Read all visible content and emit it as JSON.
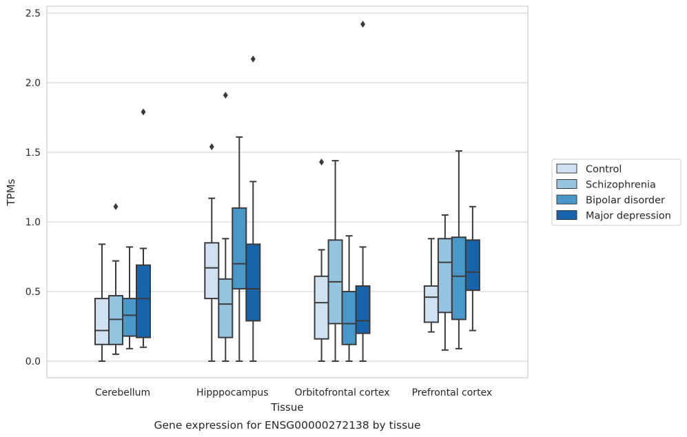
{
  "caption": "Gene expression for ENSG00000272138 by tissue",
  "chart_data": {
    "type": "box",
    "xlabel": "Tissue",
    "ylabel": "TPMs",
    "ylim": [
      -0.12,
      2.55
    ],
    "yticks": [
      0.0,
      0.5,
      1.0,
      1.5,
      2.0,
      2.5
    ],
    "ytick_labels": [
      "0.0",
      "0.5",
      "1.0",
      "1.5",
      "2.0",
      "2.5"
    ],
    "grid": "horizontal",
    "legend_position": "right",
    "categories": [
      "Cerebellum",
      "Hipppocampus",
      "Orbitofrontal cortex",
      "Prefrontal cortex"
    ],
    "series": [
      {
        "name": "Control",
        "color": "#d0e1f2",
        "boxes": [
          {
            "whislo": 0.0,
            "q1": 0.12,
            "med": 0.22,
            "q3": 0.45,
            "whishi": 0.84,
            "fliers": []
          },
          {
            "whislo": 0.0,
            "q1": 0.45,
            "med": 0.67,
            "q3": 0.85,
            "whishi": 1.17,
            "fliers": [
              1.54
            ]
          },
          {
            "whislo": 0.0,
            "q1": 0.16,
            "med": 0.42,
            "q3": 0.61,
            "whishi": 0.8,
            "fliers": [
              1.43
            ]
          },
          {
            "whislo": 0.21,
            "q1": 0.28,
            "med": 0.46,
            "q3": 0.54,
            "whishi": 0.88,
            "fliers": []
          }
        ]
      },
      {
        "name": "Schizophrenia",
        "color": "#94c4df",
        "boxes": [
          {
            "whislo": 0.05,
            "q1": 0.12,
            "med": 0.3,
            "q3": 0.47,
            "whishi": 0.72,
            "fliers": [
              1.11
            ]
          },
          {
            "whislo": 0.0,
            "q1": 0.17,
            "med": 0.41,
            "q3": 0.59,
            "whishi": 0.88,
            "fliers": [
              1.91
            ]
          },
          {
            "whislo": 0.0,
            "q1": 0.27,
            "med": 0.57,
            "q3": 0.87,
            "whishi": 1.44,
            "fliers": []
          },
          {
            "whislo": 0.08,
            "q1": 0.35,
            "med": 0.71,
            "q3": 0.88,
            "whishi": 1.05,
            "fliers": []
          }
        ]
      },
      {
        "name": "Bipolar disorder",
        "color": "#4a98c9",
        "boxes": [
          {
            "whislo": 0.09,
            "q1": 0.18,
            "med": 0.33,
            "q3": 0.45,
            "whishi": 0.82,
            "fliers": []
          },
          {
            "whislo": 0.0,
            "q1": 0.52,
            "med": 0.7,
            "q3": 1.1,
            "whishi": 1.61,
            "fliers": []
          },
          {
            "whislo": 0.0,
            "q1": 0.12,
            "med": 0.27,
            "q3": 0.5,
            "whishi": 0.9,
            "fliers": []
          },
          {
            "whislo": 0.09,
            "q1": 0.3,
            "med": 0.61,
            "q3": 0.89,
            "whishi": 1.51,
            "fliers": []
          }
        ]
      },
      {
        "name": "Major depression",
        "color": "#1764ab",
        "boxes": [
          {
            "whislo": 0.1,
            "q1": 0.17,
            "med": 0.45,
            "q3": 0.69,
            "whishi": 0.81,
            "fliers": [
              1.79
            ]
          },
          {
            "whislo": 0.0,
            "q1": 0.29,
            "med": 0.52,
            "q3": 0.84,
            "whishi": 1.29,
            "fliers": [
              2.17
            ]
          },
          {
            "whislo": 0.0,
            "q1": 0.2,
            "med": 0.29,
            "q3": 0.54,
            "whishi": 0.82,
            "fliers": [
              2.42
            ]
          },
          {
            "whislo": 0.22,
            "q1": 0.51,
            "med": 0.64,
            "q3": 0.87,
            "whishi": 1.11,
            "fliers": []
          }
        ]
      }
    ]
  }
}
